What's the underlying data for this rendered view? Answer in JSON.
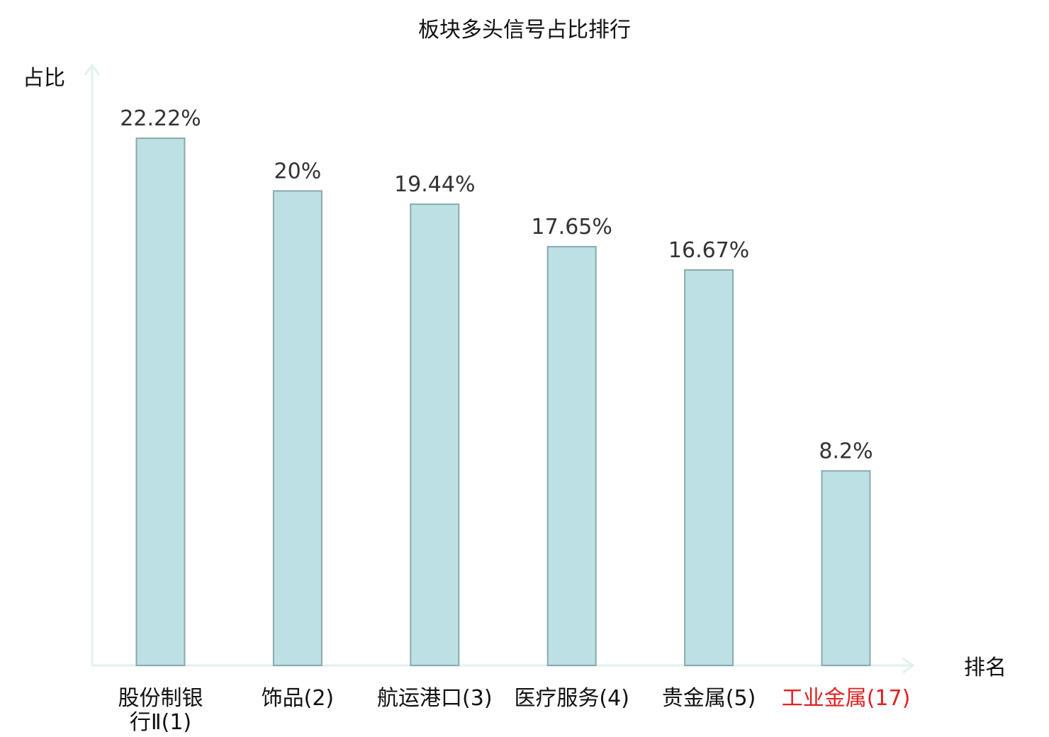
{
  "chart_data": {
    "type": "bar",
    "title": "板块多头信号占比排行",
    "ylabel": "占比",
    "xlabel": "排名",
    "categories": [
      {
        "lines": [
          "股份制银",
          "行Ⅱ(1)"
        ],
        "highlight": false
      },
      {
        "lines": [
          "饰品(2)"
        ],
        "highlight": false
      },
      {
        "lines": [
          "航运港口(3)"
        ],
        "highlight": false
      },
      {
        "lines": [
          "医疗服务(4)"
        ],
        "highlight": false
      },
      {
        "lines": [
          "贵金属(5)"
        ],
        "highlight": false
      },
      {
        "lines": [
          "工业金属(17)"
        ],
        "highlight": true
      }
    ],
    "values": [
      22.22,
      20,
      19.44,
      17.65,
      16.67,
      8.2
    ],
    "value_labels": [
      "22.22%",
      "20%",
      "19.44%",
      "17.65%",
      "16.67%",
      "8.2%"
    ],
    "ylim": [
      0,
      25.3
    ],
    "grid": false,
    "colors": {
      "bar_fill": "#bce0e3",
      "bar_stroke": "#8aa9ab",
      "axis": "#dff2ef",
      "highlight_text": "#e02020"
    }
  }
}
